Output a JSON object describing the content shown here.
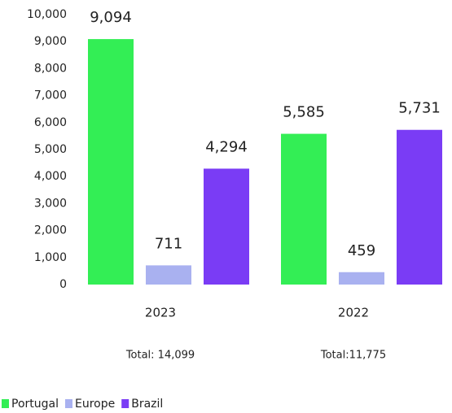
{
  "chart_data": {
    "type": "bar",
    "categories": [
      "2023",
      "2022"
    ],
    "category_notes": [
      "Total: 14,099",
      "Total:11,775"
    ],
    "series": [
      {
        "name": "Portugal",
        "color": "#33ee55",
        "values": [
          9094,
          5585
        ],
        "value_labels": [
          "9,094",
          "5,585"
        ]
      },
      {
        "name": "Europe",
        "color": "#a9b1f0",
        "values": [
          711,
          459
        ]
      },
      {
        "name": "Brazil",
        "color": "#7a3cf5",
        "values": [
          4294,
          5731
        ],
        "value_labels": [
          "4,294",
          "5,731"
        ]
      }
    ],
    "ylim": [
      0,
      10000
    ],
    "yticks": [
      0,
      {
        "value": 1000,
        "label": "1,000"
      },
      {
        "value": 2000,
        "label": "2,000"
      },
      {
        "value": 3000,
        "label": "3,000"
      },
      {
        "value": 4000,
        "label": "4,000"
      },
      {
        "value": 5000,
        "label": "5,000"
      },
      {
        "value": 6000,
        "label": "6,000"
      },
      {
        "value": 7000,
        "label": "7,000"
      },
      {
        "value": 8000,
        "label": "8,000"
      },
      {
        "value": 9000,
        "label": "9,000"
      },
      {
        "value": 10000,
        "label": "10,000"
      }
    ],
    "grid": false,
    "legend": "bottom-left"
  }
}
